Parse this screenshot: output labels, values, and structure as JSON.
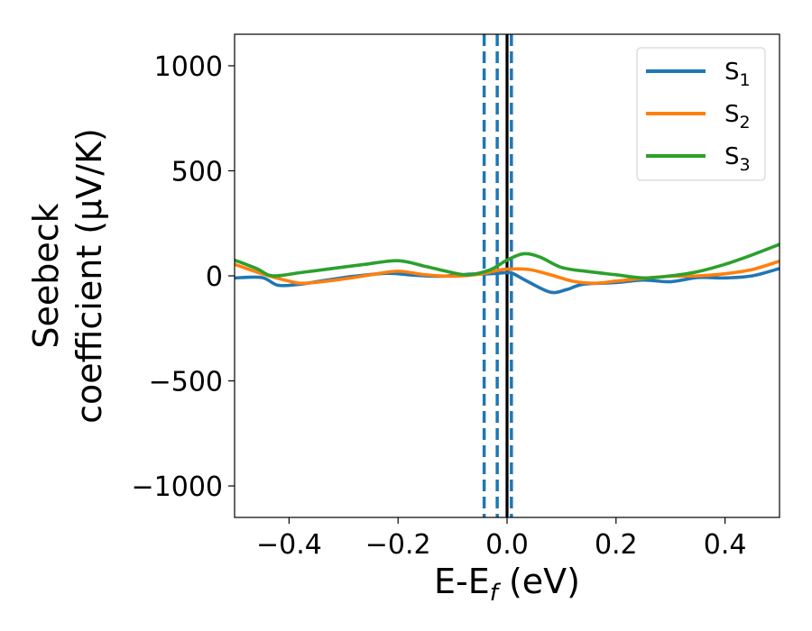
{
  "chart_data": {
    "type": "line",
    "xlabel": {
      "main": "E-E",
      "sub": "f",
      "unit": " (eV)"
    },
    "ylabel": {
      "line1": "Seebeck",
      "line2": "coefficient  (μV/K)"
    },
    "xlim": [
      -0.5,
      0.5
    ],
    "ylim": [
      -1150,
      1150
    ],
    "x_ticks": [
      -0.4,
      -0.2,
      0.0,
      0.2,
      0.4
    ],
    "x_tick_labels": [
      "−0.4",
      "−0.2",
      "0.0",
      "0.2",
      "0.4"
    ],
    "y_ticks": [
      1000,
      500,
      0,
      -500,
      -1000
    ],
    "y_tick_labels": [
      "1000",
      "500",
      "0",
      "−500",
      "−1000"
    ],
    "grid": false,
    "legend_position": "top-right",
    "vertical_lines": [
      {
        "x": -0.042,
        "style": "dashed",
        "color": "#1f77b4"
      },
      {
        "x": -0.018,
        "style": "dashed",
        "color": "#1f77b4"
      },
      {
        "x": 0.008,
        "style": "dashed",
        "color": "#1f77b4"
      },
      {
        "x": 0.0,
        "style": "solid",
        "color": "#000000"
      }
    ],
    "series": [
      {
        "name": "S",
        "sub": "1",
        "color": "#1f77b4",
        "points": [
          [
            -0.5,
            -10
          ],
          [
            -0.45,
            -8
          ],
          [
            -0.42,
            -45
          ],
          [
            -0.38,
            -40
          ],
          [
            -0.33,
            -20
          ],
          [
            -0.28,
            -2
          ],
          [
            -0.22,
            12
          ],
          [
            -0.17,
            3
          ],
          [
            -0.12,
            -2
          ],
          [
            -0.07,
            8
          ],
          [
            -0.03,
            10
          ],
          [
            0.0,
            15
          ],
          [
            0.01,
            12
          ],
          [
            0.04,
            -30
          ],
          [
            0.08,
            -78
          ],
          [
            0.11,
            -65
          ],
          [
            0.14,
            -40
          ],
          [
            0.2,
            -32
          ],
          [
            0.25,
            -20
          ],
          [
            0.3,
            -28
          ],
          [
            0.35,
            -8
          ],
          [
            0.4,
            -10
          ],
          [
            0.45,
            0
          ],
          [
            0.5,
            35
          ]
        ]
      },
      {
        "name": "S",
        "sub": "2",
        "color": "#ff7f0e",
        "points": [
          [
            -0.5,
            55
          ],
          [
            -0.45,
            10
          ],
          [
            -0.4,
            -25
          ],
          [
            -0.37,
            -35
          ],
          [
            -0.3,
            -15
          ],
          [
            -0.25,
            5
          ],
          [
            -0.2,
            22
          ],
          [
            -0.15,
            5
          ],
          [
            -0.1,
            -2
          ],
          [
            -0.05,
            8
          ],
          [
            -0.02,
            25
          ],
          [
            0.0,
            32
          ],
          [
            0.04,
            30
          ],
          [
            0.08,
            5
          ],
          [
            0.12,
            -25
          ],
          [
            0.16,
            -35
          ],
          [
            0.2,
            -25
          ],
          [
            0.25,
            -12
          ],
          [
            0.3,
            -2
          ],
          [
            0.35,
            0
          ],
          [
            0.4,
            10
          ],
          [
            0.45,
            30
          ],
          [
            0.5,
            70
          ]
        ]
      },
      {
        "name": "S",
        "sub": "3",
        "color": "#2ca02c",
        "points": [
          [
            -0.5,
            75
          ],
          [
            -0.46,
            35
          ],
          [
            -0.43,
            0
          ],
          [
            -0.38,
            15
          ],
          [
            -0.32,
            35
          ],
          [
            -0.26,
            55
          ],
          [
            -0.2,
            72
          ],
          [
            -0.15,
            45
          ],
          [
            -0.1,
            15
          ],
          [
            -0.07,
            5
          ],
          [
            -0.03,
            30
          ],
          [
            0.0,
            75
          ],
          [
            0.03,
            105
          ],
          [
            0.06,
            90
          ],
          [
            0.1,
            40
          ],
          [
            0.15,
            20
          ],
          [
            0.2,
            5
          ],
          [
            0.25,
            -10
          ],
          [
            0.3,
            0
          ],
          [
            0.35,
            20
          ],
          [
            0.4,
            55
          ],
          [
            0.45,
            100
          ],
          [
            0.5,
            150
          ]
        ]
      }
    ]
  }
}
